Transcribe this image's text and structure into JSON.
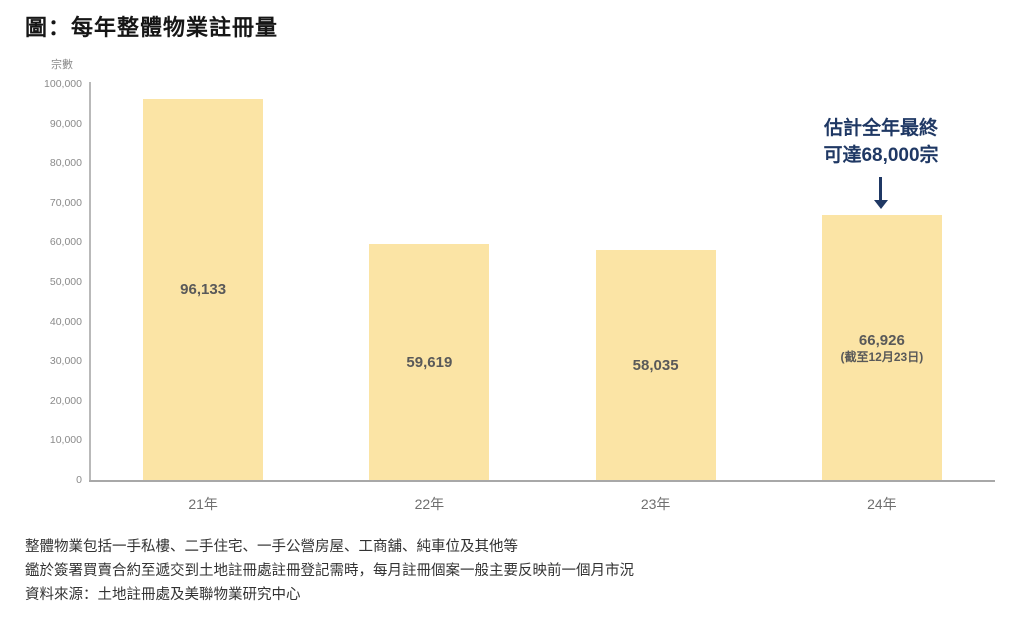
{
  "title": "圖：每年整體物業註冊量",
  "chart_data": {
    "type": "bar",
    "title": "圖：每年整體物業註冊量",
    "xlabel": "",
    "ylabel": "宗數",
    "categories": [
      "21年",
      "22年",
      "23年",
      "24年"
    ],
    "values": [
      96133,
      59619,
      58035,
      66926
    ],
    "bar_labels": [
      "96,133",
      "59,619",
      "58,035",
      "66,926"
    ],
    "bar_sublabels": [
      "",
      "",
      "",
      "(截至12月23日)"
    ],
    "ylim": [
      0,
      100000
    ],
    "ytick_labels": [
      "100,000",
      "90,000",
      "80,000",
      "70,000",
      "60,000",
      "50,000",
      "40,000",
      "30,000",
      "20,000",
      "10,000",
      "0"
    ],
    "grid": false,
    "legend": "none",
    "bar_color": "#FBE4A5",
    "value_label_color": "#595959",
    "annotation": {
      "line1": "估計全年最終",
      "line2": "可達68,000宗",
      "target_category": "24年",
      "color": "#1F3864"
    }
  },
  "footnotes": [
    "整體物業包括一手私樓、二手住宅、一手公營房屋、工商舖、純車位及其他等",
    "鑑於簽署買賣合約至遞交到土地註冊處註冊登記需時，每月註冊個案一般主要反映前一個月市況",
    "資料來源：土地註冊處及美聯物業研究中心"
  ]
}
